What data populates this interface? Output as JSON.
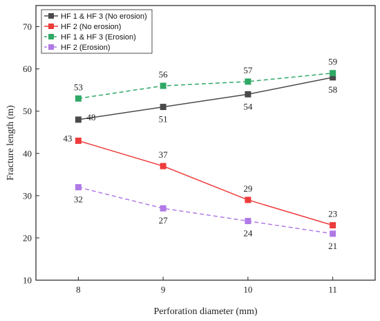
{
  "chart_data": {
    "type": "line",
    "xlabel": "Perforation diameter (mm)",
    "ylabel": "Fracture length (m)",
    "x": [
      8,
      9,
      10,
      11
    ],
    "xlim": [
      7.5,
      11.5
    ],
    "ylim": [
      10,
      75
    ],
    "xticks": [
      8,
      9,
      10,
      11
    ],
    "yticks": [
      10,
      20,
      30,
      40,
      50,
      60,
      70
    ],
    "grid": false,
    "legend_position": "top-left",
    "series": [
      {
        "name": "HF 1 & HF 3 (No erosion)",
        "values": [
          48,
          51,
          54,
          58
        ],
        "color": "#4a4a4a",
        "dashed": false,
        "labels": [
          "48",
          "51",
          "54",
          "58"
        ],
        "label_side": [
          "right",
          "below",
          "below",
          "below"
        ]
      },
      {
        "name": "HF 2 (No erosion)",
        "values": [
          43,
          37,
          29,
          23
        ],
        "color": "#ee3b3b",
        "dashed": false,
        "labels": [
          "43",
          "37",
          "29",
          "23"
        ],
        "label_side": [
          "left",
          "above",
          "above",
          "above"
        ]
      },
      {
        "name": "HF 1 & HF 3 (Erosion)",
        "values": [
          53,
          56,
          57,
          59
        ],
        "color": "#2fa866",
        "dashed": true,
        "labels": [
          "53",
          "56",
          "57",
          "59"
        ],
        "label_side": [
          "above",
          "above",
          "above",
          "above"
        ]
      },
      {
        "name": "HF 2 (Erosion)",
        "values": [
          32,
          27,
          24,
          21
        ],
        "color": "#b07ae6",
        "dashed": true,
        "labels": [
          "32",
          "27",
          "24",
          "21"
        ],
        "label_side": [
          "below",
          "below",
          "below",
          "below"
        ]
      }
    ]
  }
}
